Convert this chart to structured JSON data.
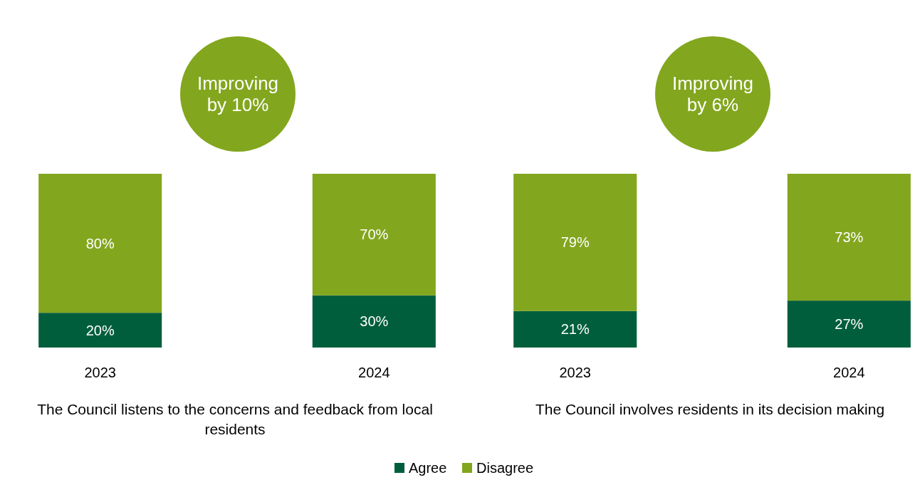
{
  "chart_data": [
    {
      "type": "bar",
      "stacked": true,
      "categories": [
        "2023",
        "2024"
      ],
      "xlabel": "The Council listens to the concerns and feedback from local residents",
      "annotations": [
        "Improving by 10%"
      ],
      "legend": "bottom",
      "series": [
        {
          "name": "Agree",
          "color": "#005e3c",
          "values": [
            20,
            30
          ],
          "value_labels": [
            "20%",
            "30%"
          ]
        },
        {
          "name": "Disagree",
          "color": "#82a61e",
          "values": [
            80,
            70
          ],
          "value_labels": [
            "80%",
            "70%"
          ]
        }
      ]
    },
    {
      "type": "bar",
      "stacked": true,
      "categories": [
        "2023",
        "2024"
      ],
      "xlabel": "The Council involves residents in its decision making",
      "annotations": [
        "Improving by 6%"
      ],
      "series": [
        {
          "color": "#005e3c",
          "values": [
            21,
            27
          ],
          "value_labels": [
            "21%",
            "27%"
          ]
        },
        {
          "color": "#82a61e",
          "values": [
            79,
            73
          ],
          "value_labels": [
            "79%",
            "73%"
          ]
        }
      ]
    }
  ]
}
